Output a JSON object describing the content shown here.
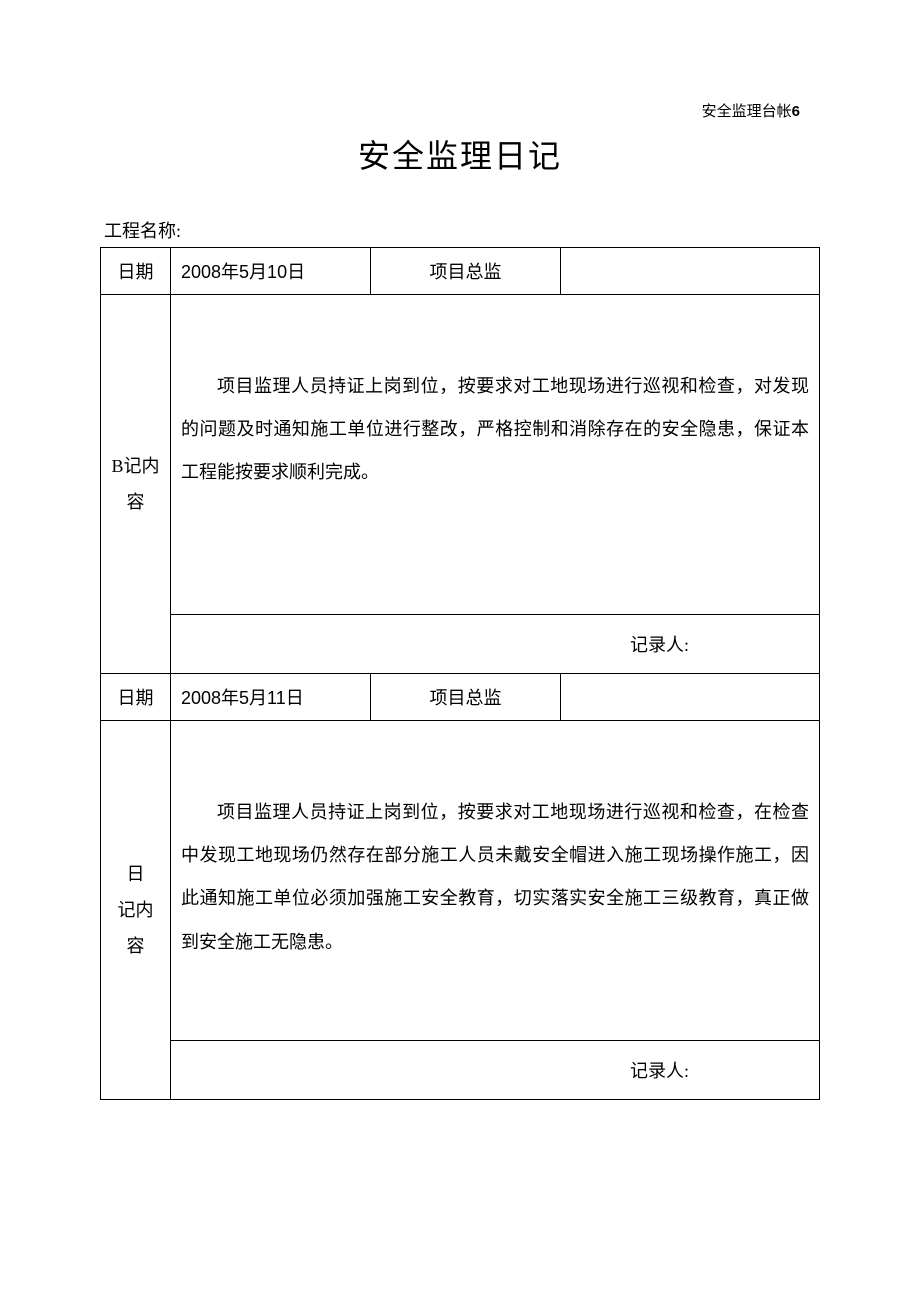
{
  "header": {
    "top_right_text": "安全监理台帐",
    "top_right_num": "6"
  },
  "title": "安全监理日记",
  "project_label": "工程名称:",
  "labels": {
    "date": "日期",
    "pm": "项目总监",
    "content1": "B记内容",
    "content2_line1": "日",
    "content2_line2": "记内容",
    "recorder": "记录人:"
  },
  "entries": [
    {
      "date": "2008年5月10日",
      "pm_value": "",
      "content": "项目监理人员持证上岗到位，按要求对工地现场进行巡视和检查，对发现的问题及时通知施工单位进行整改，严格控制和消除存在的安全隐患，保证本工程能按要求顺利完成。",
      "recorder_value": ""
    },
    {
      "date": "2008年5月11日",
      "pm_value": "",
      "content": "项目监理人员持证上岗到位，按要求对工地现场进行巡视和检查，在检查中发现工地现场仍然存在部分施工人员未戴安全帽进入施工现场操作施工，因此通知施工单位必须加强施工安全教育，切实落实安全施工三级教育，真正做到安全施工无隐患。",
      "recorder_value": ""
    }
  ],
  "colors": {
    "text": "#000000",
    "background": "#ffffff",
    "border": "#000000"
  },
  "typography": {
    "title_fontsize": 32,
    "body_fontsize": 18,
    "header_right_fontsize": 15,
    "line_height": 2.4
  }
}
